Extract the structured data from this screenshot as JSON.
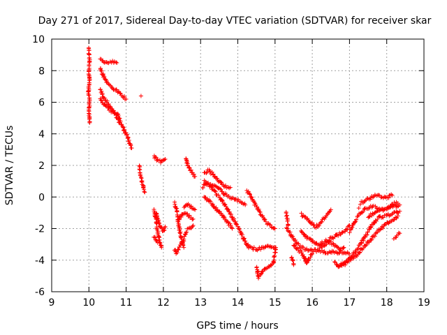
{
  "chart_data": {
    "type": "scatter",
    "title": "Day 271 of 2017, Sidereal Day-to-day VTEC variation (SDTVAR) for receiver skar",
    "xlabel": "GPS time / hours",
    "ylabel": "SDTVAR / TECUs",
    "xlim": [
      9,
      19
    ],
    "ylim": [
      -6,
      10
    ],
    "xticks": [
      "9",
      "10",
      "11",
      "12",
      "13",
      "14",
      "15",
      "16",
      "17",
      "18",
      "19"
    ],
    "yticks": [
      "-6",
      "-4",
      "-2",
      "0",
      "2",
      "4",
      "6",
      "8",
      "10"
    ],
    "grid": true,
    "marker": "+",
    "color": "#ff0000",
    "series": [
      {
        "name": "SDTVAR",
        "tracks": [
          [
            [
              10.0,
              9.4
            ],
            [
              10.0,
              9.0
            ],
            [
              10.02,
              8.7
            ],
            [
              10.0,
              7.8
            ],
            [
              10.02,
              7.4
            ],
            [
              9.98,
              6.6
            ],
            [
              10.02,
              6.3
            ],
            [
              10.0,
              5.4
            ],
            [
              10.02,
              4.7
            ]
          ],
          [
            [
              10.3,
              8.7
            ],
            [
              10.45,
              8.5
            ],
            [
              10.6,
              8.6
            ],
            [
              10.75,
              8.5
            ]
          ],
          [
            [
              10.3,
              8.2
            ],
            [
              10.4,
              7.6
            ],
            [
              10.5,
              7.2
            ],
            [
              10.6,
              7.0
            ],
            [
              10.75,
              6.7
            ],
            [
              10.9,
              6.4
            ],
            [
              11.0,
              6.2
            ]
          ],
          [
            [
              10.3,
              6.8
            ],
            [
              10.4,
              6.3
            ],
            [
              10.5,
              6.0
            ],
            [
              10.6,
              5.6
            ],
            [
              10.7,
              5.3
            ],
            [
              10.8,
              4.8
            ],
            [
              10.9,
              4.5
            ],
            [
              11.0,
              4.0
            ],
            [
              11.1,
              3.4
            ],
            [
              11.15,
              3.1
            ]
          ],
          [
            [
              10.3,
              6.2
            ],
            [
              10.45,
              5.8
            ],
            [
              10.55,
              5.5
            ],
            [
              10.65,
              5.4
            ],
            [
              10.75,
              5.3
            ],
            [
              10.85,
              4.8
            ]
          ],
          [
            [
              11.4,
              6.4
            ]
          ],
          [
            [
              11.35,
              2.0
            ],
            [
              11.4,
              1.2
            ],
            [
              11.45,
              0.8
            ],
            [
              11.5,
              0.3
            ]
          ],
          [
            [
              11.75,
              2.6
            ],
            [
              11.85,
              2.3
            ],
            [
              11.95,
              2.2
            ],
            [
              12.05,
              2.4
            ]
          ],
          [
            [
              11.75,
              -0.8
            ],
            [
              11.8,
              -1.4
            ],
            [
              11.85,
              -2.2
            ],
            [
              11.9,
              -2.8
            ],
            [
              11.95,
              -3.2
            ]
          ],
          [
            [
              11.8,
              -1.0
            ],
            [
              11.9,
              -1.8
            ],
            [
              12.0,
              -2.2
            ],
            [
              12.05,
              -1.9
            ]
          ],
          [
            [
              11.75,
              -2.5
            ],
            [
              11.85,
              -2.9
            ]
          ],
          [
            [
              12.3,
              -0.4
            ],
            [
              12.35,
              -0.8
            ],
            [
              12.4,
              -1.6
            ],
            [
              12.45,
              -2.3
            ],
            [
              12.5,
              -2.8
            ],
            [
              12.55,
              -3.2
            ]
          ],
          [
            [
              12.3,
              -3.3
            ],
            [
              12.35,
              -3.6
            ],
            [
              12.45,
              -3.1
            ],
            [
              12.55,
              -2.7
            ],
            [
              12.6,
              -2.2
            ],
            [
              12.7,
              -2.0
            ],
            [
              12.8,
              -1.8
            ]
          ],
          [
            [
              12.4,
              -1.5
            ],
            [
              12.5,
              -1.1
            ],
            [
              12.6,
              -1.0
            ],
            [
              12.7,
              -1.2
            ],
            [
              12.8,
              -1.4
            ]
          ],
          [
            [
              12.55,
              -0.7
            ],
            [
              12.65,
              -0.5
            ],
            [
              12.75,
              -0.6
            ],
            [
              12.85,
              -0.8
            ]
          ],
          [
            [
              12.6,
              2.5
            ],
            [
              12.65,
              2.1
            ],
            [
              12.7,
              1.8
            ],
            [
              12.8,
              1.5
            ],
            [
              12.85,
              1.3
            ]
          ],
          [
            [
              13.05,
              0.6
            ],
            [
              13.15,
              0.9
            ],
            [
              13.3,
              0.8
            ],
            [
              13.5,
              0.5
            ],
            [
              13.7,
              0.1
            ],
            [
              13.9,
              -0.1
            ],
            [
              14.1,
              -0.3
            ],
            [
              14.2,
              -0.5
            ]
          ],
          [
            [
              13.1,
              1.5
            ],
            [
              13.2,
              1.7
            ],
            [
              13.35,
              1.4
            ],
            [
              13.5,
              1.0
            ],
            [
              13.65,
              0.7
            ],
            [
              13.8,
              0.6
            ]
          ],
          [
            [
              13.1,
              1.0
            ],
            [
              13.2,
              0.8
            ],
            [
              13.35,
              0.4
            ],
            [
              13.5,
              0.0
            ],
            [
              13.65,
              -0.5
            ],
            [
              13.8,
              -1.1
            ],
            [
              13.95,
              -1.7
            ],
            [
              14.1,
              -2.3
            ]
          ],
          [
            [
              13.1,
              0.0
            ],
            [
              13.25,
              -0.3
            ],
            [
              13.4,
              -0.7
            ],
            [
              13.55,
              -1.1
            ],
            [
              13.7,
              -1.5
            ],
            [
              13.85,
              -2.0
            ]
          ],
          [
            [
              14.25,
              0.4
            ],
            [
              14.3,
              0.2
            ],
            [
              14.4,
              -0.2
            ],
            [
              14.5,
              -0.6
            ],
            [
              14.6,
              -1.0
            ],
            [
              14.7,
              -1.4
            ],
            [
              14.8,
              -1.7
            ],
            [
              14.9,
              -1.9
            ],
            [
              15.0,
              -2.0
            ]
          ],
          [
            [
              14.1,
              -2.4
            ],
            [
              14.2,
              -2.8
            ],
            [
              14.3,
              -3.2
            ],
            [
              14.5,
              -3.3
            ],
            [
              14.7,
              -3.2
            ],
            [
              14.85,
              -3.1
            ],
            [
              15.0,
              -3.3
            ]
          ],
          [
            [
              14.5,
              -4.5
            ],
            [
              14.55,
              -5.1
            ],
            [
              14.6,
              -5.0
            ],
            [
              14.65,
              -4.8
            ],
            [
              14.75,
              -4.5
            ],
            [
              14.85,
              -4.4
            ],
            [
              14.95,
              -4.2
            ],
            [
              15.0,
              -3.6
            ],
            [
              15.02,
              -3.2
            ]
          ],
          [
            [
              14.55,
              -4.7
            ]
          ],
          [
            [
              15.3,
              -1.0
            ],
            [
              15.35,
              -1.8
            ]
          ],
          [
            [
              15.3,
              -2.0
            ],
            [
              15.4,
              -2.3
            ],
            [
              15.5,
              -2.7
            ],
            [
              15.6,
              -3.0
            ],
            [
              15.7,
              -3.2
            ],
            [
              15.85,
              -3.3
            ],
            [
              16.0,
              -3.4
            ],
            [
              16.2,
              -3.4
            ],
            [
              16.4,
              -3.5
            ],
            [
              16.6,
              -3.5
            ],
            [
              16.8,
              -3.5
            ],
            [
              17.0,
              -3.6
            ]
          ],
          [
            [
              15.5,
              -3.0
            ],
            [
              15.6,
              -3.3
            ],
            [
              15.7,
              -3.5
            ],
            [
              15.8,
              -3.9
            ],
            [
              15.85,
              -4.2
            ],
            [
              15.9,
              -3.9
            ],
            [
              16.0,
              -3.6
            ]
          ],
          [
            [
              15.45,
              -3.8
            ],
            [
              15.5,
              -4.3
            ]
          ],
          [
            [
              15.7,
              -1.1
            ],
            [
              15.85,
              -1.4
            ],
            [
              16.0,
              -1.7
            ],
            [
              16.1,
              -1.9
            ],
            [
              16.2,
              -1.7
            ],
            [
              16.3,
              -1.4
            ],
            [
              16.4,
              -1.1
            ],
            [
              16.5,
              -0.8
            ]
          ],
          [
            [
              15.7,
              -2.2
            ],
            [
              15.85,
              -2.6
            ],
            [
              16.0,
              -2.8
            ],
            [
              16.15,
              -3.0
            ],
            [
              16.3,
              -2.9
            ],
            [
              16.45,
              -2.7
            ],
            [
              16.6,
              -2.5
            ],
            [
              16.75,
              -2.3
            ],
            [
              16.9,
              -2.1
            ],
            [
              17.0,
              -1.8
            ]
          ],
          [
            [
              16.2,
              -3.2
            ],
            [
              16.35,
              -3.0
            ],
            [
              16.5,
              -2.9
            ],
            [
              16.65,
              -3.1
            ],
            [
              16.75,
              -3.3
            ],
            [
              16.85,
              -3.2
            ]
          ],
          [
            [
              16.6,
              -4.1
            ],
            [
              16.7,
              -4.4
            ],
            [
              16.8,
              -4.3
            ],
            [
              16.9,
              -4.2
            ],
            [
              17.0,
              -3.9
            ],
            [
              17.1,
              -3.6
            ],
            [
              17.2,
              -3.3
            ],
            [
              17.3,
              -3.0
            ],
            [
              17.4,
              -2.6
            ],
            [
              17.5,
              -2.2
            ],
            [
              17.6,
              -1.8
            ],
            [
              17.7,
              -1.5
            ],
            [
              17.8,
              -1.3
            ],
            [
              17.95,
              -1.2
            ],
            [
              18.1,
              -1.1
            ],
            [
              18.25,
              -1.0
            ],
            [
              18.35,
              -0.9
            ]
          ],
          [
            [
              16.7,
              -4.4
            ],
            [
              16.85,
              -4.2
            ],
            [
              17.0,
              -4.0
            ],
            [
              17.15,
              -3.8
            ],
            [
              17.3,
              -3.4
            ],
            [
              17.45,
              -3.0
            ],
            [
              17.6,
              -2.6
            ],
            [
              17.75,
              -2.2
            ],
            [
              17.9,
              -1.9
            ],
            [
              18.05,
              -1.6
            ],
            [
              18.2,
              -1.4
            ],
            [
              18.3,
              -1.2
            ]
          ],
          [
            [
              17.0,
              -2.2
            ],
            [
              17.1,
              -1.8
            ],
            [
              17.2,
              -1.3
            ],
            [
              17.3,
              -1.0
            ],
            [
              17.45,
              -0.7
            ],
            [
              17.6,
              -0.6
            ],
            [
              17.75,
              -0.7
            ],
            [
              17.9,
              -0.8
            ],
            [
              18.05,
              -0.7
            ],
            [
              18.2,
              -0.4
            ],
            [
              18.3,
              -0.4
            ]
          ],
          [
            [
              17.3,
              -0.4
            ],
            [
              17.45,
              -0.2
            ],
            [
              17.6,
              0.0
            ],
            [
              17.75,
              0.1
            ],
            [
              17.9,
              0.0
            ],
            [
              18.05,
              0.0
            ],
            [
              18.15,
              0.1
            ]
          ],
          [
            [
              17.5,
              -1.3
            ],
            [
              17.6,
              -1.1
            ],
            [
              17.75,
              -0.9
            ],
            [
              17.9,
              -0.8
            ],
            [
              18.05,
              -0.7
            ],
            [
              18.2,
              -0.6
            ],
            [
              18.35,
              -0.5
            ]
          ],
          [
            [
              17.25,
              -0.7
            ]
          ],
          [
            [
              18.2,
              -2.6
            ],
            [
              18.25,
              -2.5
            ],
            [
              18.3,
              -2.4
            ],
            [
              18.35,
              -2.3
            ]
          ]
        ]
      }
    ]
  }
}
